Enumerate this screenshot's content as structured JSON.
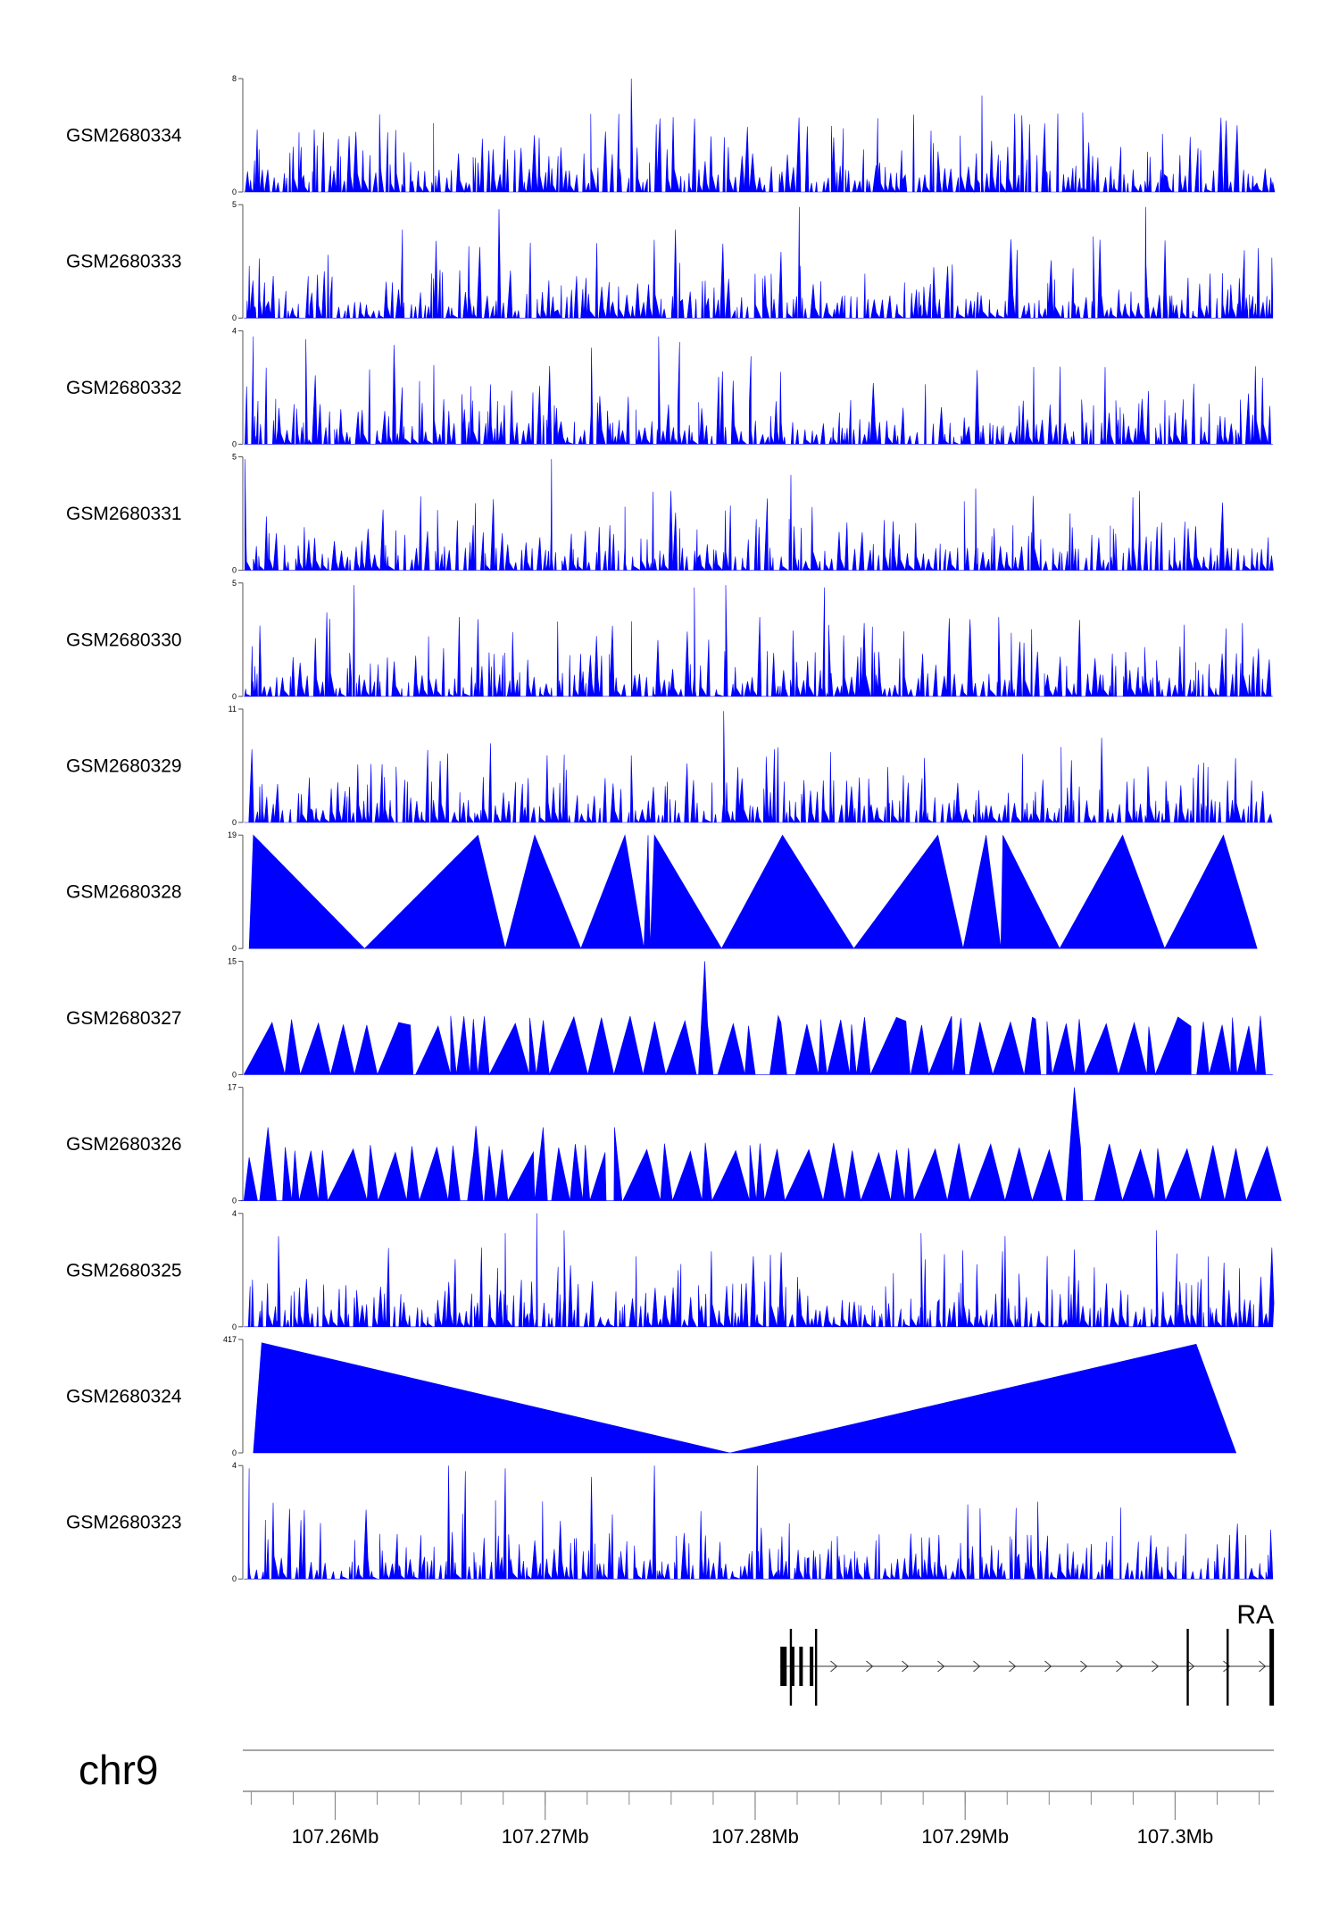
{
  "chart_data": {
    "type": "area",
    "chromosome": "chr9",
    "x_range_mb": [
      107.2556,
      107.3047
    ],
    "x_ticks": [
      107.26,
      107.27,
      107.28,
      107.29,
      107.3
    ],
    "x_tick_labels": [
      "107.26Mb",
      "107.27Mb",
      "107.28Mb",
      "107.29Mb",
      "107.3Mb"
    ],
    "color": "#0000ff",
    "tracks": [
      {
        "name": "GSM2680334",
        "ymin": 0,
        "ymax": 8,
        "kind": "dense",
        "seed": 334,
        "peaks": [
          [
            107.2741,
            8.0
          ],
          [
            107.2908,
            6.8
          ],
          [
            107.2927,
            5.4
          ],
          [
            107.2956,
            5.6
          ],
          [
            107.2842,
            4.5
          ],
          [
            107.2625,
            4.2
          ],
          [
            107.259,
            4.4
          ]
        ]
      },
      {
        "name": "GSM2680333",
        "ymin": 0,
        "ymax": 5,
        "kind": "dense",
        "seed": 333,
        "peaks": [
          [
            107.2678,
            4.8
          ],
          [
            107.2821,
            4.9
          ],
          [
            107.2986,
            4.9
          ],
          [
            107.2632,
            3.9
          ],
          [
            107.2762,
            3.9
          ],
          [
            107.2961,
            3.6
          ]
        ]
      },
      {
        "name": "GSM2680332",
        "ymin": 0,
        "ymax": 4,
        "kind": "dense",
        "seed": 332,
        "peaks": [
          [
            107.2561,
            3.8
          ],
          [
            107.2586,
            3.7
          ],
          [
            107.2628,
            3.5
          ],
          [
            107.2754,
            3.8
          ],
          [
            107.2764,
            3.6
          ],
          [
            107.2722,
            3.4
          ],
          [
            107.2798,
            3.1
          ]
        ]
      },
      {
        "name": "GSM2680331",
        "ymin": 0,
        "ymax": 5,
        "kind": "dense",
        "seed": 331,
        "peaks": [
          [
            107.2557,
            4.9
          ],
          [
            107.2703,
            4.9
          ],
          [
            107.2738,
            2.8
          ],
          [
            107.2817,
            4.2
          ],
          [
            107.2905,
            3.6
          ],
          [
            107.2983,
            3.5
          ]
        ]
      },
      {
        "name": "GSM2680330",
        "ymin": 0,
        "ymax": 5,
        "kind": "dense",
        "seed": 330,
        "peaks": [
          [
            107.2609,
            4.9
          ],
          [
            107.2771,
            4.8
          ],
          [
            107.2786,
            4.9
          ],
          [
            107.2833,
            4.8
          ],
          [
            107.2596,
            3.7
          ],
          [
            107.2668,
            3.4
          ],
          [
            107.2916,
            3.5
          ]
        ]
      },
      {
        "name": "GSM2680329",
        "ymin": 0,
        "ymax": 11,
        "kind": "dense",
        "seed": 329,
        "peaks": [
          [
            107.2785,
            10.8
          ],
          [
            107.2965,
            8.2
          ],
          [
            107.2741,
            6.5
          ],
          [
            107.2629,
            5.4
          ],
          [
            107.271,
            5.1
          ],
          [
            107.3011,
            5.6
          ]
        ]
      },
      {
        "name": "GSM2680328",
        "ymin": 0,
        "ymax": 19,
        "kind": "points",
        "closed_end": false,
        "points": [
          [
            107.2559,
            0
          ],
          [
            107.2561,
            19
          ],
          [
            107.2614,
            0
          ],
          [
            107.2668,
            19
          ],
          [
            107.2681,
            0
          ],
          [
            107.2695,
            19
          ],
          [
            107.2717,
            0
          ],
          [
            107.2738,
            19
          ],
          [
            107.2747,
            0
          ],
          [
            107.2749,
            19
          ],
          [
            107.275,
            0
          ],
          [
            107.2752,
            19
          ],
          [
            107.2784,
            0
          ],
          [
            107.2813,
            19
          ],
          [
            107.2847,
            0
          ],
          [
            107.2887,
            19
          ],
          [
            107.2899,
            0
          ],
          [
            107.291,
            19
          ],
          [
            107.2917,
            0
          ],
          [
            107.2918,
            19
          ],
          [
            107.2945,
            0
          ],
          [
            107.2975,
            19
          ],
          [
            107.2995,
            0
          ],
          [
            107.3023,
            19
          ],
          [
            107.3039,
            0
          ]
        ]
      },
      {
        "name": "GSM2680327",
        "ymin": 0,
        "ymax": 15,
        "kind": "sparse",
        "seed": 327,
        "peaks": [
          [
            107.2776,
            15.0
          ],
          [
            107.2811,
            7.8
          ],
          [
            107.2932,
            7.6
          ],
          [
            107.2898,
            7.5
          ]
        ]
      },
      {
        "name": "GSM2680326",
        "ymin": 0,
        "ymax": 17,
        "kind": "sparse",
        "seed": 326,
        "peaks": [
          [
            107.2952,
            17.0
          ],
          [
            107.2667,
            11.2
          ],
          [
            107.2699,
            11.0
          ],
          [
            107.2733,
            11.0
          ],
          [
            107.2568,
            11.0
          ],
          [
            107.2559,
            6.5
          ]
        ]
      },
      {
        "name": "GSM2680325",
        "ymin": 0,
        "ymax": 4,
        "kind": "dense",
        "seed": 325,
        "peaks": [
          [
            107.2696,
            4.0
          ],
          [
            107.2681,
            3.3
          ],
          [
            107.2709,
            3.4
          ],
          [
            107.2879,
            3.3
          ],
          [
            107.2919,
            3.2
          ],
          [
            107.2991,
            3.4
          ],
          [
            107.2573,
            3.2
          ]
        ]
      },
      {
        "name": "GSM2680324",
        "ymin": 0,
        "ymax": 417,
        "kind": "points",
        "closed_end": false,
        "points": [
          [
            107.2561,
            0
          ],
          [
            107.2565,
            405
          ],
          [
            107.2788,
            0
          ],
          [
            107.301,
            400
          ],
          [
            107.3029,
            0
          ]
        ]
      },
      {
        "name": "GSM2680323",
        "ymin": 0,
        "ymax": 4,
        "kind": "dense",
        "seed": 323,
        "peaks": [
          [
            107.2654,
            4.0
          ],
          [
            107.2662,
            3.8
          ],
          [
            107.2752,
            4.0
          ],
          [
            107.2801,
            4.0
          ],
          [
            107.2681,
            3.9
          ],
          [
            107.2722,
            3.6
          ],
          [
            107.2559,
            3.9
          ]
        ]
      }
    ],
    "gene": {
      "label": "RA",
      "strand": "+",
      "start_mb": 107.2812,
      "end_mb": 107.3047,
      "exons_mb": [
        [
          107.2812,
          107.2815
        ],
        [
          107.2817,
          107.2818
        ],
        [
          107.2821,
          107.2822
        ],
        [
          107.2826,
          107.2827
        ]
      ],
      "marks_mb": [
        107.2817,
        107.2829,
        107.3006,
        107.3025,
        107.3046
      ]
    }
  }
}
